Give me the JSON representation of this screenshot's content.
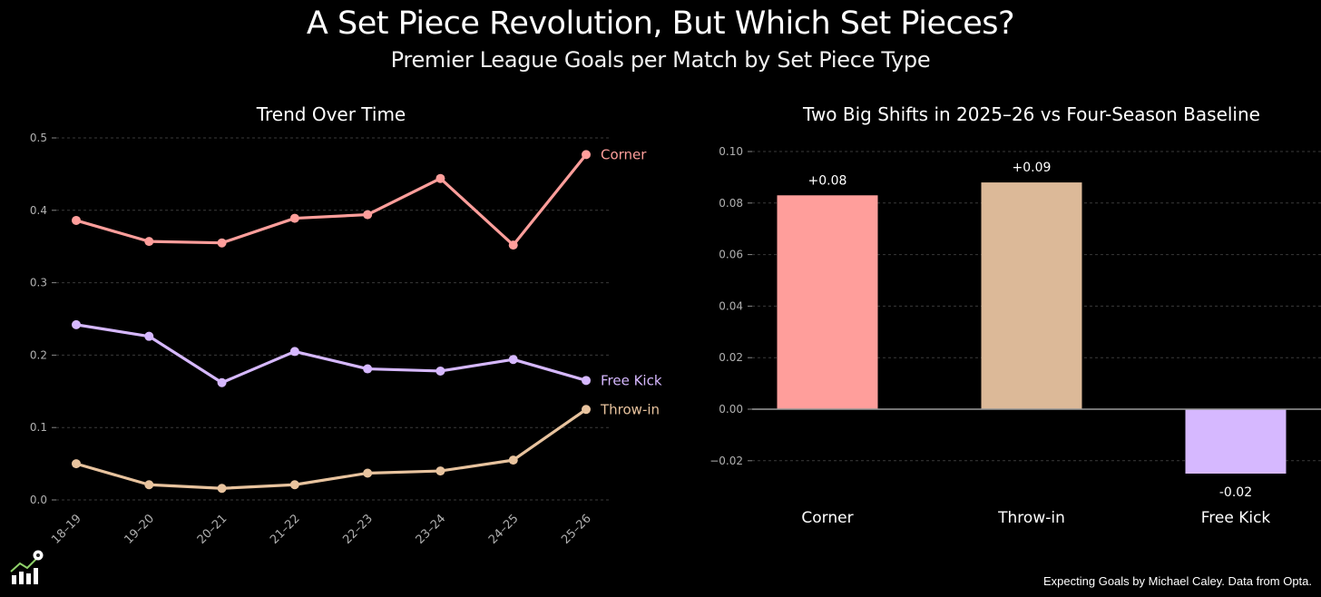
{
  "header": {
    "title": "A Set Piece Revolution, But Which Set Pieces?",
    "subtitle": "Premier League Goals per Match by Set Piece Type"
  },
  "footer": {
    "credit": "Expecting Goals by Michael Caley. Data from Opta."
  },
  "colors": {
    "corner": "#ff9e9b",
    "free_kick": "#d6b8ff",
    "throw_in": "#e8c39e",
    "background": "#000000",
    "grid": "#3a3a3a",
    "tick": "#b0b0b0"
  },
  "icons": {
    "logo": "chart-with-soccer-ball-icon"
  },
  "chart_data": [
    {
      "type": "line",
      "title": "Trend Over Time",
      "xlabel": "",
      "ylabel": "",
      "x": [
        "18–19",
        "19–20",
        "20–21",
        "21–22",
        "22–23",
        "23–24",
        "24–25",
        "25–26"
      ],
      "series": [
        {
          "name": "Corner",
          "color": "#ff9e9b",
          "values": [
            0.386,
            0.357,
            0.355,
            0.389,
            0.394,
            0.444,
            0.352,
            0.477
          ]
        },
        {
          "name": "Free Kick",
          "color": "#d6b8ff",
          "values": [
            0.242,
            0.226,
            0.162,
            0.205,
            0.181,
            0.178,
            0.194,
            0.165
          ]
        },
        {
          "name": "Throw-in",
          "color": "#e8c39e",
          "values": [
            0.05,
            0.021,
            0.016,
            0.021,
            0.037,
            0.04,
            0.055,
            0.125
          ]
        }
      ],
      "yticks": [
        "0.0",
        "0.1",
        "0.2",
        "0.3",
        "0.4",
        "0.5"
      ],
      "ylim": [
        0,
        0.5
      ],
      "grid": true,
      "legend": "inline labels at line ends"
    },
    {
      "type": "bar",
      "title": "Two Big Shifts in 2025–26 vs Four-Season Baseline",
      "xlabel": "",
      "ylabel": "",
      "categories": [
        "Corner",
        "Throw-in",
        "Free Kick"
      ],
      "values": [
        0.083,
        0.088,
        -0.025
      ],
      "data_labels": [
        "+0.08",
        "+0.09",
        "-0.02"
      ],
      "colors": [
        "#ff9e9b",
        "#dcb998",
        "#d6b8ff"
      ],
      "yticks": [
        "−0.02",
        "0.00",
        "0.02",
        "0.04",
        "0.06",
        "0.08",
        "0.10"
      ],
      "ylim": [
        -0.03,
        0.105
      ],
      "grid": true
    }
  ]
}
